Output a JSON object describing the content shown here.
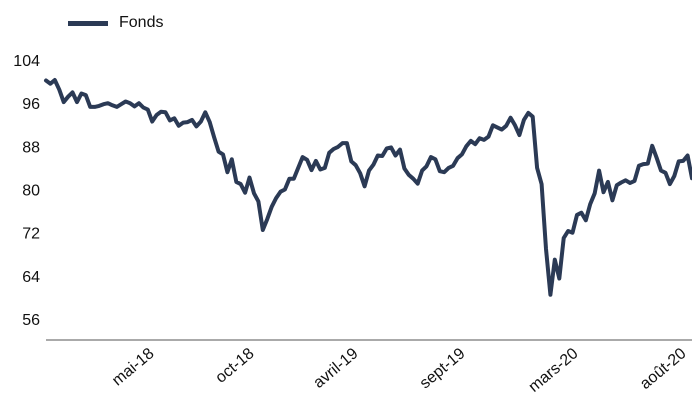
{
  "chart_data": {
    "type": "line",
    "title": "",
    "xlabel": "",
    "ylabel": "",
    "legend_position": "top-left",
    "grid": false,
    "ylim": [
      52,
      108
    ],
    "y_ticks": [
      56,
      64,
      72,
      80,
      88,
      96,
      104
    ],
    "x_ticks": [
      "mai-18",
      "oct-18",
      "avril-19",
      "sept-19",
      "mars-20",
      "août-20"
    ],
    "series": [
      {
        "name": "Fonds",
        "color": "#2b3a55",
        "values": [
          100.2,
          99.6,
          100.3,
          98.5,
          96.2,
          97.2,
          98.0,
          96.2,
          97.8,
          97.5,
          95.3,
          95.3,
          95.5,
          95.8,
          96.0,
          95.6,
          95.3,
          95.8,
          96.3,
          96.0,
          95.4,
          96.0,
          95.2,
          94.8,
          92.6,
          93.8,
          94.4,
          94.3,
          92.8,
          93.2,
          91.8,
          92.4,
          92.5,
          92.9,
          91.7,
          92.6,
          94.3,
          92.5,
          89.7,
          87.0,
          86.5,
          83.2,
          85.6,
          81.4,
          81.0,
          79.4,
          82.2,
          79.3,
          77.8,
          72.5,
          74.5,
          76.8,
          78.4,
          79.6,
          80.0,
          82.0,
          82.0,
          84.0,
          86.0,
          85.5,
          83.6,
          85.3,
          83.7,
          84.0,
          86.8,
          87.5,
          87.9,
          88.6,
          88.6,
          85.2,
          84.5,
          83.0,
          80.6,
          83.5,
          84.6,
          86.3,
          86.2,
          87.6,
          87.8,
          86.3,
          87.4,
          83.9,
          82.7,
          82.0,
          81.1,
          83.5,
          84.3,
          86.0,
          85.6,
          83.4,
          83.2,
          84.0,
          84.4,
          85.8,
          86.5,
          88.0,
          89.0,
          88.4,
          89.5,
          89.2,
          89.8,
          91.9,
          91.5,
          91.1,
          91.8,
          93.3,
          91.9,
          90.1,
          92.9,
          94.2,
          93.5,
          84.0,
          81.0,
          69.0,
          60.5,
          67.0,
          63.5,
          71.0,
          72.3,
          72.0,
          75.3,
          75.7,
          74.3,
          77.3,
          79.3,
          83.5,
          79.5,
          81.4,
          78.0,
          80.8,
          81.3,
          81.7,
          81.2,
          81.6,
          84.4,
          84.7,
          84.8,
          88.1,
          85.9,
          83.5,
          83.1,
          81.0,
          82.5,
          85.2,
          85.3,
          86.3,
          82.1
        ]
      }
    ]
  }
}
